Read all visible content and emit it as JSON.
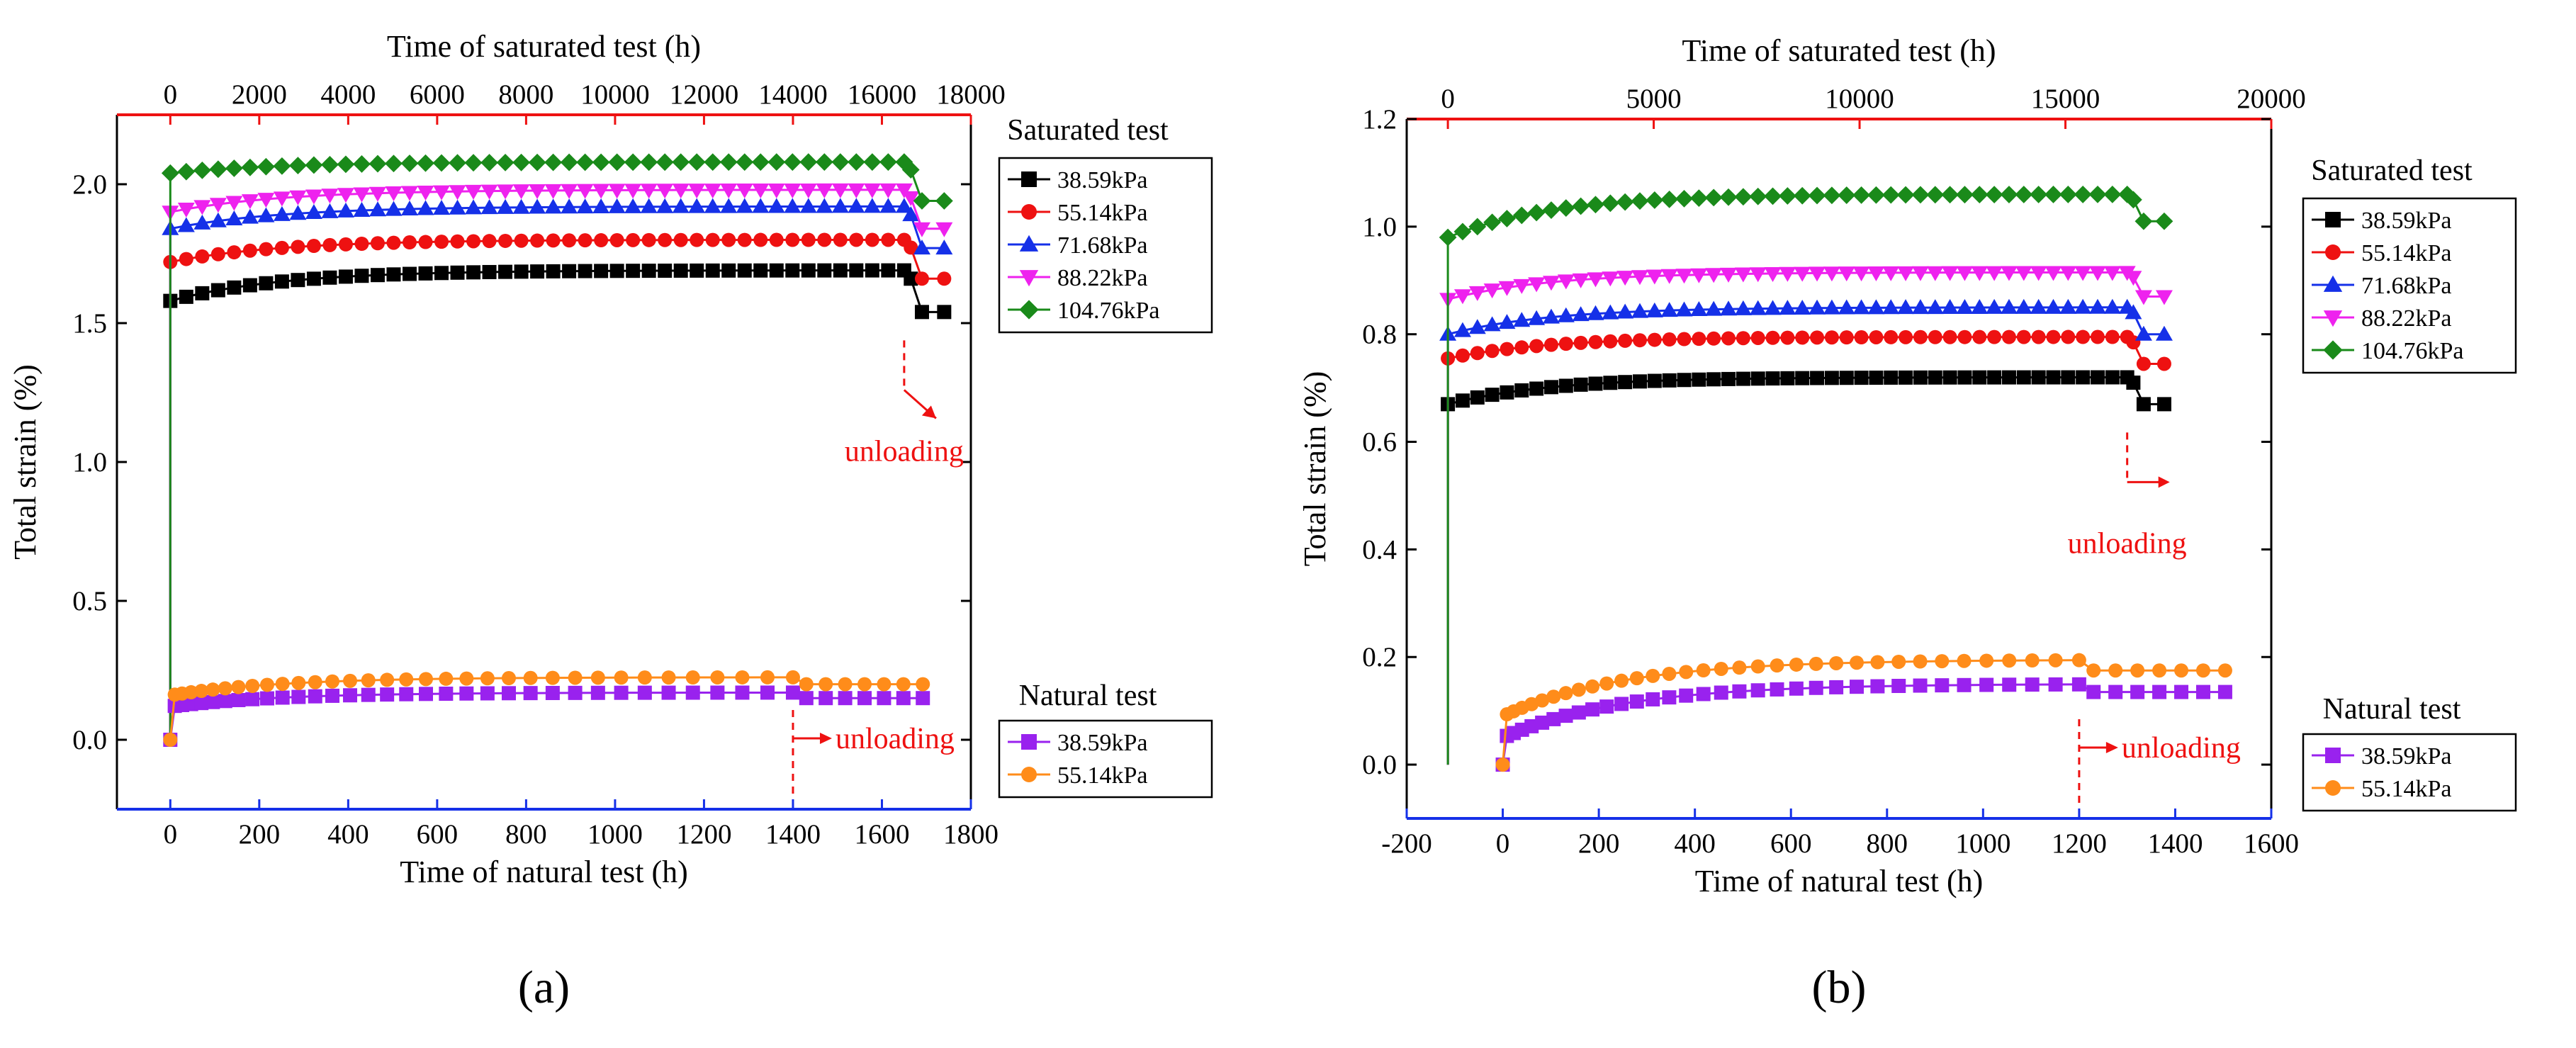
{
  "colors": {
    "s38": "#000000",
    "s55": "#ee1111",
    "s71": "#1530e8",
    "s88": "#ee22ee",
    "s104": "#1a8a1a",
    "n38": "#9922ee",
    "n55": "#ff8c1a",
    "top_axis": "#ee1111",
    "bottom_axis": "#1530e8",
    "unload": "#ee1111"
  },
  "chart_data": [
    {
      "type": "line",
      "panel_label": "(a)",
      "top_xlabel": "Time of saturated test  (h)",
      "bottom_xlabel": "Time of natural test  (h)",
      "ylabel": "Total strain (%)",
      "ylim": [
        -0.25,
        2.25
      ],
      "yticks": [
        "0.0",
        "0.5",
        "1.0",
        "1.5",
        "2.0"
      ],
      "yticks_values": [
        0,
        0.5,
        1.0,
        1.5,
        2.0
      ],
      "xlim_bottom": [
        -120,
        1800
      ],
      "xticks_bottom": [
        "0",
        "200",
        "400",
        "600",
        "800",
        "1000",
        "1200",
        "1400",
        "1600",
        "1800"
      ],
      "xticks_bottom_values": [
        0,
        200,
        400,
        600,
        800,
        1000,
        1200,
        1400,
        1600,
        1800
      ],
      "xlim_top": [
        -1200,
        18000
      ],
      "xticks_top": [
        "0",
        "2000",
        "4000",
        "6000",
        "8000",
        "10000",
        "12000",
        "14000",
        "16000",
        "18000"
      ],
      "xticks_top_values": [
        0,
        2000,
        4000,
        6000,
        8000,
        10000,
        12000,
        14000,
        16000,
        18000
      ],
      "saturated_legend_title": "Saturated test",
      "natural_legend_title": "Natural test",
      "unload_label_saturated": "unloading",
      "unload_label_natural": "unloading",
      "unload_saturated_x": 16500,
      "unload_natural_x": 1400,
      "saturated_series": [
        {
          "name": "38.59kPa",
          "marker": "square",
          "color_key": "s38",
          "final": 1.69,
          "after": 1.54,
          "start": 1.58
        },
        {
          "name": "55.14kPa",
          "marker": "circle",
          "color_key": "s55",
          "final": 1.8,
          "after": 1.66,
          "start": 1.72
        },
        {
          "name": "71.68kPa",
          "marker": "triangle-up",
          "color_key": "s71",
          "final": 1.92,
          "after": 1.77,
          "start": 1.84
        },
        {
          "name": "88.22kPa",
          "marker": "triangle-down",
          "color_key": "s88",
          "final": 1.98,
          "after": 1.84,
          "start": 1.9
        },
        {
          "name": "104.76kPa",
          "marker": "diamond",
          "color_key": "s104",
          "final": 2.08,
          "after": 1.94,
          "start": 2.04
        }
      ],
      "natural_series": [
        {
          "name": "38.59kPa",
          "marker": "square",
          "color_key": "n38",
          "final": 0.17,
          "after": 0.15,
          "start": 0.12
        },
        {
          "name": "55.14kPa",
          "marker": "circle",
          "color_key": "n55",
          "final": 0.225,
          "after": 0.2,
          "start": 0.16
        }
      ]
    },
    {
      "type": "line",
      "panel_label": "(b)",
      "top_xlabel": "Time of saturated test  (h)",
      "bottom_xlabel": "Time of natural test  (h)",
      "ylabel": "Total strain (%)",
      "ylim": [
        -0.1,
        1.2
      ],
      "yticks": [
        "0.0",
        "0.2",
        "0.4",
        "0.6",
        "0.8",
        "1.0",
        "1.2"
      ],
      "yticks_values": [
        0,
        0.2,
        0.4,
        0.6,
        0.8,
        1.0,
        1.2
      ],
      "xlim_bottom": [
        -200,
        1600
      ],
      "xticks_bottom": [
        "-200",
        "0",
        "200",
        "400",
        "600",
        "800",
        "1000",
        "1200",
        "1400",
        "1600"
      ],
      "xticks_bottom_values": [
        -200,
        0,
        200,
        400,
        600,
        800,
        1000,
        1200,
        1400,
        1600
      ],
      "xlim_top": [
        -1000,
        20000
      ],
      "xticks_top": [
        "0",
        "5000",
        "10000",
        "15000",
        "20000"
      ],
      "xticks_top_values": [
        0,
        5000,
        10000,
        15000,
        20000
      ],
      "saturated_legend_title": "Saturated test",
      "natural_legend_title": "Natural test",
      "unload_label_saturated": "unloading",
      "unload_label_natural": "unloading",
      "unload_saturated_x": 16500,
      "unload_natural_x": 1200,
      "saturated_series": [
        {
          "name": "38.59kPa",
          "marker": "square",
          "color_key": "s38",
          "final": 0.72,
          "after": 0.67,
          "start": 0.67
        },
        {
          "name": "55.14kPa",
          "marker": "circle",
          "color_key": "s55",
          "final": 0.795,
          "after": 0.745,
          "start": 0.755
        },
        {
          "name": "71.68kPa",
          "marker": "triangle-up",
          "color_key": "s71",
          "final": 0.85,
          "after": 0.8,
          "start": 0.8
        },
        {
          "name": "88.22kPa",
          "marker": "triangle-down",
          "color_key": "s88",
          "final": 0.915,
          "after": 0.87,
          "start": 0.865
        },
        {
          "name": "104.76kPa",
          "marker": "diamond",
          "color_key": "s104",
          "final": 1.06,
          "after": 1.01,
          "start": 0.98
        }
      ],
      "natural_series": [
        {
          "name": "38.59kPa",
          "marker": "square",
          "color_key": "n38",
          "final": 0.15,
          "after": 0.135,
          "start": 0.05
        },
        {
          "name": "55.14kPa",
          "marker": "circle",
          "color_key": "n55",
          "final": 0.195,
          "after": 0.175,
          "start": 0.09
        }
      ]
    }
  ]
}
